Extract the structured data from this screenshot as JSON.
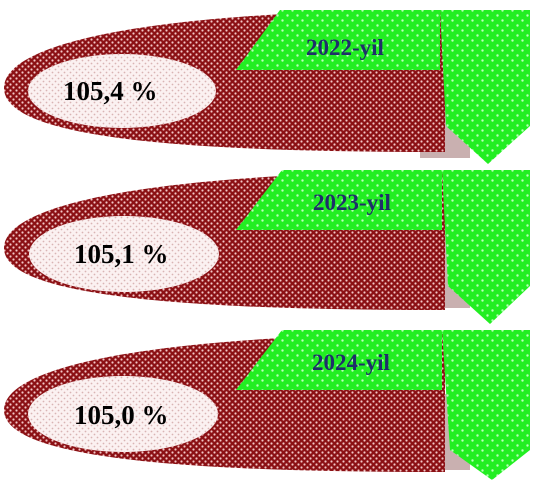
{
  "colors": {
    "maroon_fill": "#8b1014",
    "maroon_dots": "#f3c6c6",
    "ellipse_fill": "#fbf1f1",
    "ellipse_dots": "#d9b4b4",
    "green_fill": "#22ee22",
    "green_dots": "#b8ffb8",
    "shadow": "#c9b0b0",
    "year_text": "#1f2f6a",
    "value_text": "#000000"
  },
  "stats": [
    {
      "year_label": "2022-yil",
      "value_label": "105,4 %"
    },
    {
      "year_label": "2023-yil",
      "value_label": "105,1 %"
    },
    {
      "year_label": "2024-yil",
      "value_label": "105,0 %"
    }
  ]
}
